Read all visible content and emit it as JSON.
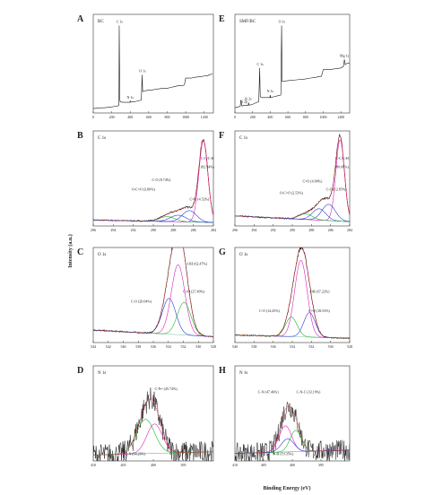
{
  "colors": {
    "raw": "#1a1a1a",
    "envelope": "#e0221e",
    "magenta": "#e020c0",
    "green": "#1db62a",
    "blue": "#2a3ad8",
    "background": "#6fb5a0",
    "panel_d_background": "#34a86a"
  },
  "axes": {
    "ylabel": "Intensity (a.u.)",
    "xlabel": "Binding Energy (eV)"
  },
  "chart_data": [
    {
      "id": "A",
      "type": "line",
      "letter": "A",
      "title": "BC",
      "xlim": [
        0,
        1300
      ],
      "xticks": [
        0,
        200,
        400,
        600,
        800,
        1000,
        1200
      ],
      "xtick_labels": [
        "0",
        "200",
        "400",
        "600",
        "800",
        "1000",
        "1200"
      ],
      "series": [
        {
          "name": "",
          "x": [
            0,
            40,
            80,
            120,
            160,
            200,
            230,
            260,
            278,
            281,
            284,
            287,
            290,
            292,
            320,
            360,
            396,
            400,
            404,
            420,
            440,
            480,
            520,
            529,
            532,
            535,
            560,
            600,
            640,
            680,
            720,
            760,
            800,
            840,
            880,
            920,
            960,
            980,
            990,
            1000,
            1060,
            1100,
            1140,
            1180,
            1200,
            1220,
            1240,
            1260,
            1290
          ],
          "y": [
            2,
            2.5,
            3,
            3,
            3.5,
            4,
            4.5,
            5,
            6,
            100,
            60,
            14,
            11,
            10,
            9.5,
            9.5,
            9.5,
            11,
            9.5,
            10,
            10,
            11,
            12,
            42,
            30,
            22,
            23,
            24,
            24,
            25,
            25.5,
            26,
            26,
            27,
            28,
            29,
            29,
            29.5,
            32,
            38,
            38,
            39,
            39.5,
            40,
            40.5,
            41,
            41,
            42,
            43
          ]
        }
      ],
      "annotations": [
        {
          "text": "C 1s",
          "x": 285
        },
        {
          "text": "O 1s",
          "x": 532
        },
        {
          "text": "N 1s",
          "x": 400
        }
      ]
    },
    {
      "id": "E",
      "type": "line",
      "letter": "E",
      "title": "SMF/BC",
      "xlim": [
        0,
        1300
      ],
      "xticks": [
        0,
        200,
        400,
        600,
        800,
        1000,
        1200
      ],
      "xtick_labels": [
        "0",
        "200",
        "400",
        "600",
        "800",
        "1000",
        "1200"
      ],
      "series": [
        {
          "name": "",
          "x": [
            0,
            40,
            60,
            70,
            80,
            100,
            120,
            150,
            155,
            160,
            200,
            240,
            270,
            281,
            284,
            287,
            300,
            360,
            396,
            400,
            404,
            440,
            480,
            520,
            529,
            532,
            535,
            600,
            700,
            800,
            850,
            920,
            960,
            980,
            1000,
            1060,
            1140,
            1200,
            1230,
            1240,
            1250,
            1260,
            1300
          ],
          "y": [
            3,
            4,
            5,
            12,
            5,
            6,
            6,
            6,
            9,
            6,
            7,
            9,
            10,
            50,
            30,
            16,
            15,
            15,
            15,
            18,
            15,
            16,
            17,
            18,
            100,
            60,
            34,
            35,
            36,
            37,
            38,
            39,
            40,
            40,
            48,
            48,
            49,
            50,
            52,
            60,
            54,
            55,
            56
          ]
        }
      ],
      "annotations": [
        {
          "text": "O 1s",
          "x": 532
        },
        {
          "text": "C 1s",
          "x": 285
        },
        {
          "text": "N 1s",
          "x": 400
        },
        {
          "text": "Mg 1s",
          "x": 1240
        },
        {
          "text": "Si 2s",
          "x": 150
        },
        {
          "text": "Si 2p",
          "x": 100
        }
      ]
    },
    {
      "id": "B",
      "type": "line",
      "letter": "B",
      "title": "C 1s",
      "xlim": [
        296,
        284
      ],
      "reverse": true,
      "xticks": [
        296,
        294,
        292,
        290,
        288,
        286,
        284
      ],
      "xtick_labels": [
        "296",
        "294",
        "292",
        "290",
        "288",
        "286",
        "284"
      ],
      "peaks": [
        {
          "name": "C-C/C-H (82.94%)",
          "center": 285.0,
          "height": 100,
          "sigma": 0.45,
          "color": "magenta"
        },
        {
          "name": "C-O (8.74%)",
          "center": 286.4,
          "height": 14,
          "sigma": 0.7,
          "color": "blue"
        },
        {
          "name": "O-C=O (3.80%)",
          "center": 288.6,
          "height": 6,
          "sigma": 0.8,
          "color": "green"
        },
        {
          "name": "C=O (4.52%)",
          "center": 287.5,
          "height": 8,
          "sigma": 0.8,
          "color": "blue"
        }
      ],
      "background": {
        "start": 4,
        "end": 1
      },
      "annotations": [
        {
          "text": "C-C/C-H",
          "x": 284.6,
          "y": 78
        },
        {
          "text": "(82.94%)",
          "x": 284.6,
          "y": 68
        },
        {
          "text": "C-O (8.74%)",
          "x": 289.2,
          "y": 52
        },
        {
          "text": "O-C=O (3.80%)",
          "x": 291.0,
          "y": 40
        },
        {
          "text": "C=O (4.52%)",
          "x": 285.4,
          "y": 28
        }
      ]
    },
    {
      "id": "F",
      "type": "line",
      "letter": "F",
      "title": "C 1s",
      "xlim": [
        296,
        284
      ],
      "reverse": true,
      "xticks": [
        296,
        294,
        292,
        290,
        288,
        286,
        284
      ],
      "xtick_labels": [
        "296",
        "294",
        "292",
        "290",
        "288",
        "286",
        "284"
      ],
      "peaks": [
        {
          "name": "C-C/C-H (80.08%)",
          "center": 285.0,
          "height": 100,
          "sigma": 0.45,
          "color": "magenta"
        },
        {
          "name": "C=O (4.90%)",
          "center": 287.2,
          "height": 14,
          "sigma": 0.7,
          "color": "blue"
        },
        {
          "name": "O-C=O (2.53%)",
          "center": 288.6,
          "height": 7,
          "sigma": 0.7,
          "color": "green"
        },
        {
          "name": "C-O (12.85%)",
          "center": 286.2,
          "height": 20,
          "sigma": 0.7,
          "color": "blue"
        }
      ],
      "background": {
        "start": 9,
        "end": 2
      },
      "annotations": [
        {
          "text": "C-C/C-H",
          "x": 284.8,
          "y": 78
        },
        {
          "text": "(80.08%)",
          "x": 284.8,
          "y": 68
        },
        {
          "text": "C=O (4.90%)",
          "x": 287.9,
          "y": 50
        },
        {
          "text": "O-C=O (2.53%)",
          "x": 290.1,
          "y": 36
        },
        {
          "text": "C-O (12.85%)",
          "x": 285.4,
          "y": 40
        }
      ]
    },
    {
      "id": "C",
      "type": "line",
      "letter": "C",
      "title": "O 1s",
      "xlim": [
        544,
        528
      ],
      "reverse": true,
      "xticks": [
        544,
        542,
        540,
        538,
        536,
        534,
        532,
        530,
        528
      ],
      "xtick_labels": [
        "544",
        "542",
        "540",
        "538",
        "536",
        "534",
        "532",
        "530",
        "528"
      ],
      "peaks": [
        {
          "name": "-OH (62.47%)",
          "center": 532.7,
          "height": 86,
          "sigma": 0.9,
          "color": "magenta"
        },
        {
          "name": "C=O (27.49%)",
          "center": 531.9,
          "height": 40,
          "sigma": 0.9,
          "color": "green"
        },
        {
          "name": "C-O (20.04%)",
          "center": 533.9,
          "height": 44,
          "sigma": 0.9,
          "color": "blue"
        }
      ],
      "background": {
        "start": 12,
        "end": 4
      },
      "annotations": [
        {
          "text": "-OH (62.47%)",
          "x": 530.2,
          "y": 92
        },
        {
          "text": "C=O (27.49%)",
          "x": 530.6,
          "y": 58
        },
        {
          "text": "C-O (20.04%)",
          "x": 537.6,
          "y": 46
        }
      ]
    },
    {
      "id": "G",
      "type": "line",
      "letter": "G",
      "title": "O 1s",
      "xlim": [
        540,
        528
      ],
      "reverse": true,
      "xticks": [
        540,
        538,
        536,
        534,
        532,
        530,
        528
      ],
      "xtick_labels": [
        "540",
        "538",
        "536",
        "534",
        "532",
        "530",
        "528"
      ],
      "peaks": [
        {
          "name": "-OH (67.22%)",
          "center": 533.1,
          "height": 94,
          "sigma": 0.65,
          "color": "magenta"
        },
        {
          "name": "C=O (18.53%)",
          "center": 532.2,
          "height": 30,
          "sigma": 0.6,
          "color": "blue"
        },
        {
          "name": "C-O (14.25%)",
          "center": 534.1,
          "height": 24,
          "sigma": 0.6,
          "color": "green"
        }
      ],
      "background": {
        "start": 6,
        "end": 2
      },
      "annotations": [
        {
          "text": "-OH (67.22%)",
          "x": 531.2,
          "y": 58
        },
        {
          "text": "C=O (18.53%)",
          "x": 531.2,
          "y": 34
        },
        {
          "text": "C-O (14.25%)",
          "x": 536.4,
          "y": 34
        }
      ]
    },
    {
      "id": "D",
      "type": "line",
      "letter": "D",
      "title": "N 1s",
      "xlim": [
        410,
        390
      ],
      "reverse": true,
      "xticks": [
        410,
        405,
        400,
        395
      ],
      "xtick_labels": [
        "410",
        "405",
        "400",
        "395"
      ],
      "peaks": [
        {
          "name": "C-N= (45.74%)",
          "center": 399.8,
          "height": 36,
          "sigma": 1.3,
          "color": "magenta"
        },
        {
          "name": "C-N (54.26%)",
          "center": 401.3,
          "height": 42,
          "sigma": 1.5,
          "color": "green"
        }
      ],
      "background": {
        "start": 4,
        "end": 8
      },
      "noise": 14,
      "annotations": [
        {
          "text": "C-N= (45.74%)",
          "x": 397.9,
          "y": 84
        },
        {
          "text": "C-N (54.26%)",
          "x": 403.0,
          "y": 4
        }
      ]
    },
    {
      "id": "H",
      "type": "line",
      "letter": "H",
      "title": "N 1s",
      "xlim": [
        410,
        390
      ],
      "reverse": true,
      "xticks": [
        410,
        405,
        400,
        395
      ],
      "xtick_labels": [
        "410",
        "405",
        "400",
        "395"
      ],
      "peaks": [
        {
          "name": "C-N (47.46%)",
          "center": 401.2,
          "height": 32,
          "sigma": 1.1,
          "color": "magenta"
        },
        {
          "name": "C-N-C (33.19%)",
          "center": 399.4,
          "height": 26,
          "sigma": 1.0,
          "color": "green"
        },
        {
          "name": "N-H (19.35%)",
          "center": 400.8,
          "height": 16,
          "sigma": 1.1,
          "color": "blue"
        }
      ],
      "background": {
        "start": 6,
        "end": 10
      },
      "noise": 13,
      "annotations": [
        {
          "text": "C-N (47.46%)",
          "x": 404.2,
          "y": 80
        },
        {
          "text": "C-N-C (33.19%)",
          "x": 397.2,
          "y": 80
        },
        {
          "text": "N-H (19.35%)",
          "x": 401.6,
          "y": 4
        }
      ]
    }
  ]
}
